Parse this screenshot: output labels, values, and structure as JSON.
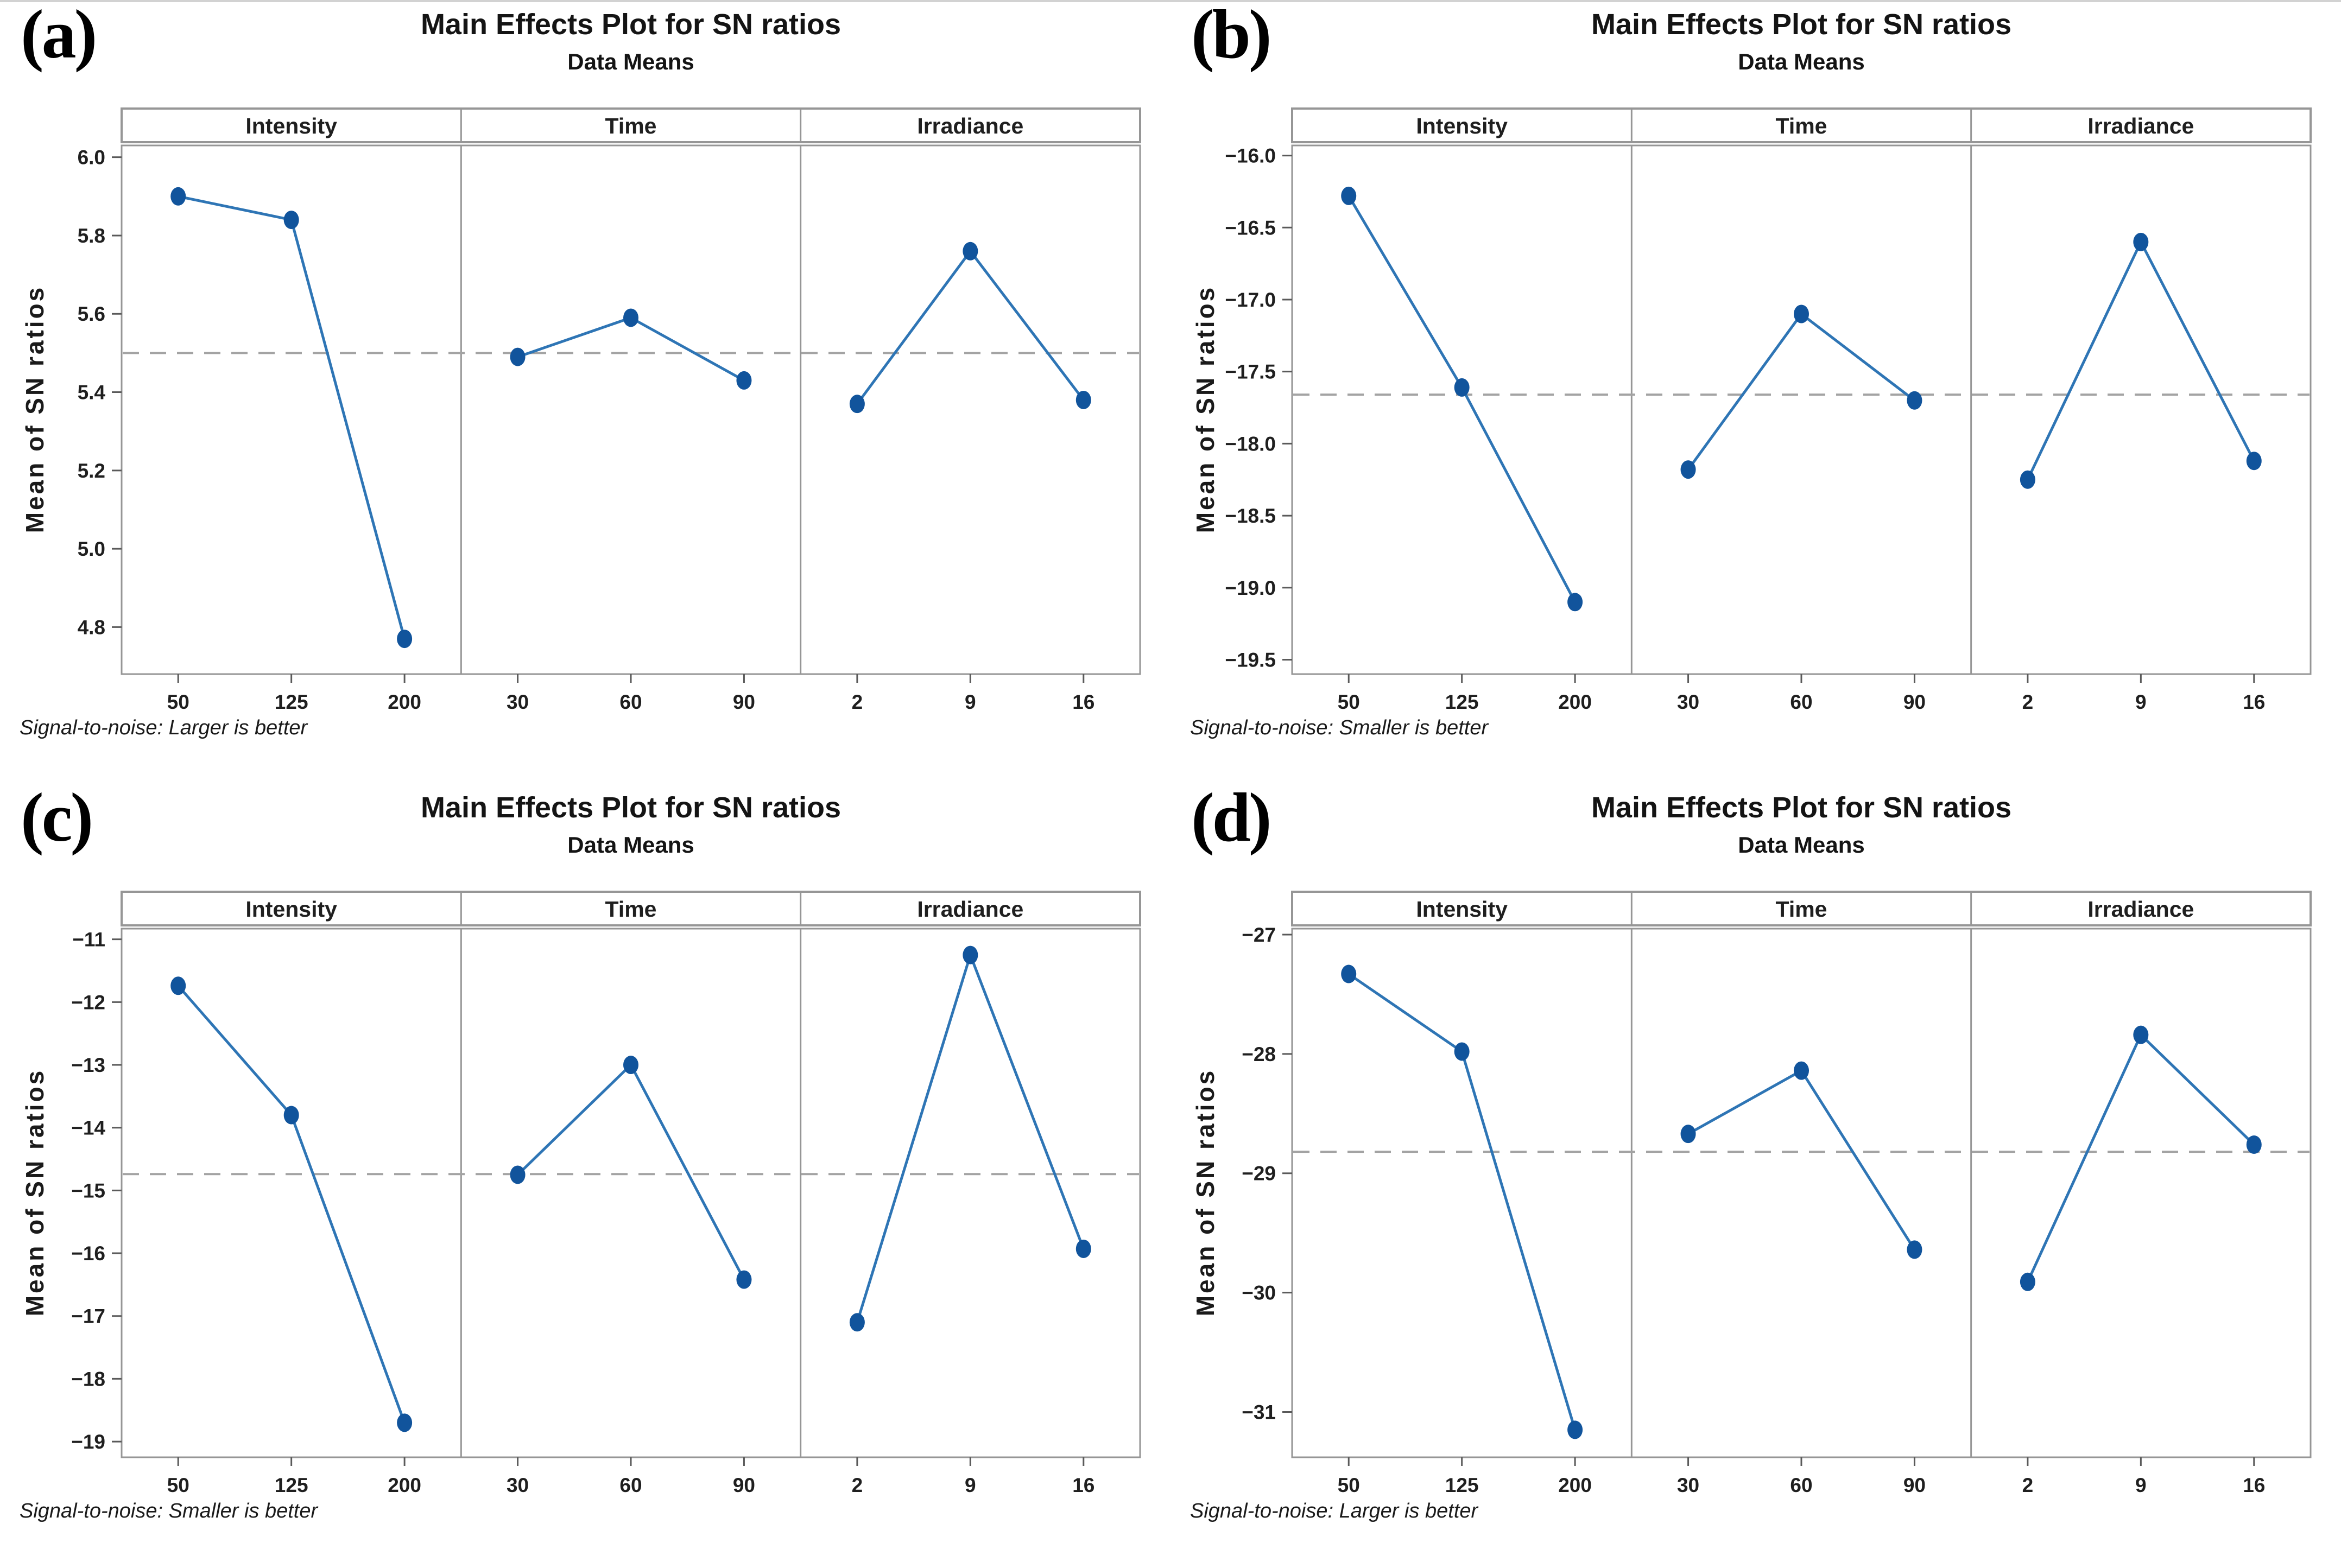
{
  "styles": {
    "marker_color": "#11549c",
    "line_color": "#2e75b5",
    "dashed_color": "#a3a3a3",
    "frame_color": "#969696",
    "tick_color": "#5a5a5a",
    "text_color": "#1f1f1f",
    "background": "#ffffff"
  },
  "chart_data": [
    {
      "type": "line",
      "panel_label": "(a)",
      "title": "Main Effects Plot for SN ratios",
      "subtitle": "Data Means",
      "ylabel": "Mean of SN ratios",
      "footnote": "Signal-to-noise: Larger is better",
      "reference_mean": 5.5,
      "ylim": [
        4.68,
        6.03
      ],
      "yticks": [
        6.0,
        5.8,
        5.6,
        5.4,
        5.2,
        5.0,
        4.8
      ],
      "ytick_labels": [
        "6.0",
        "5.8",
        "5.6",
        "5.4",
        "5.2",
        "5.0",
        "4.8"
      ],
      "legend_position": "none",
      "grid": "off",
      "factors": [
        {
          "name": "Intensity",
          "categories": [
            "50",
            "125",
            "200"
          ],
          "values": [
            5.9,
            5.84,
            4.77
          ]
        },
        {
          "name": "Time",
          "categories": [
            "30",
            "60",
            "90"
          ],
          "values": [
            5.49,
            5.59,
            5.43
          ]
        },
        {
          "name": "Irradiance",
          "categories": [
            "2",
            "9",
            "16"
          ],
          "values": [
            5.37,
            5.76,
            5.38
          ]
        }
      ]
    },
    {
      "type": "line",
      "panel_label": "(b)",
      "title": "Main Effects Plot for SN ratios",
      "subtitle": "Data Means",
      "ylabel": "Mean of SN ratios",
      "footnote": "Signal-to-noise: Smaller is better",
      "reference_mean": -17.66,
      "ylim": [
        -19.6,
        -15.93
      ],
      "yticks": [
        -16.0,
        -16.5,
        -17.0,
        -17.5,
        -18.0,
        -18.5,
        -19.0,
        -19.5
      ],
      "ytick_labels": [
        "−16.0",
        "−16.5",
        "−17.0",
        "−17.5",
        "−18.0",
        "−18.5",
        "−19.0",
        "−19.5"
      ],
      "legend_position": "none",
      "grid": "off",
      "factors": [
        {
          "name": "Intensity",
          "categories": [
            "50",
            "125",
            "200"
          ],
          "values": [
            -16.28,
            -17.61,
            -19.1
          ]
        },
        {
          "name": "Time",
          "categories": [
            "30",
            "60",
            "90"
          ],
          "values": [
            -18.18,
            -17.1,
            -17.7
          ]
        },
        {
          "name": "Irradiance",
          "categories": [
            "2",
            "9",
            "16"
          ],
          "values": [
            -18.25,
            -16.6,
            -18.12
          ]
        }
      ]
    },
    {
      "type": "line",
      "panel_label": "(c)",
      "title": "Main Effects Plot for SN ratios",
      "subtitle": "Data Means",
      "ylabel": "Mean of SN ratios",
      "footnote": "Signal-to-noise: Smaller is better",
      "reference_mean": -14.74,
      "ylim": [
        -19.25,
        -10.83
      ],
      "yticks": [
        -11,
        -12,
        -13,
        -14,
        -15,
        -16,
        -17,
        -18,
        -19
      ],
      "ytick_labels": [
        "−11",
        "−12",
        "−13",
        "−14",
        "−15",
        "−16",
        "−17",
        "−18",
        "−19"
      ],
      "legend_position": "none",
      "grid": "off",
      "factors": [
        {
          "name": "Intensity",
          "categories": [
            "50",
            "125",
            "200"
          ],
          "values": [
            -11.74,
            -13.8,
            -18.7
          ]
        },
        {
          "name": "Time",
          "categories": [
            "30",
            "60",
            "90"
          ],
          "values": [
            -14.75,
            -13.0,
            -16.42
          ]
        },
        {
          "name": "Irradiance",
          "categories": [
            "2",
            "9",
            "16"
          ],
          "values": [
            -17.1,
            -11.25,
            -15.93
          ]
        }
      ]
    },
    {
      "type": "line",
      "panel_label": "(d)",
      "title": "Main Effects Plot for SN ratios",
      "subtitle": "Data Means",
      "ylabel": "Mean of SN ratios",
      "footnote": "Signal-to-noise: Larger is better",
      "reference_mean": -28.82,
      "ylim": [
        -31.38,
        -26.95
      ],
      "yticks": [
        -27,
        -28,
        -29,
        -30,
        -31
      ],
      "ytick_labels": [
        "−27",
        "−28",
        "−29",
        "−30",
        "−31"
      ],
      "legend_position": "none",
      "grid": "off",
      "factors": [
        {
          "name": "Intensity",
          "categories": [
            "50",
            "125",
            "200"
          ],
          "values": [
            -27.33,
            -27.98,
            -31.15
          ]
        },
        {
          "name": "Time",
          "categories": [
            "30",
            "60",
            "90"
          ],
          "values": [
            -28.67,
            -28.14,
            -29.64
          ]
        },
        {
          "name": "Irradiance",
          "categories": [
            "2",
            "9",
            "16"
          ],
          "values": [
            -29.91,
            -27.84,
            -28.76
          ]
        }
      ]
    }
  ]
}
